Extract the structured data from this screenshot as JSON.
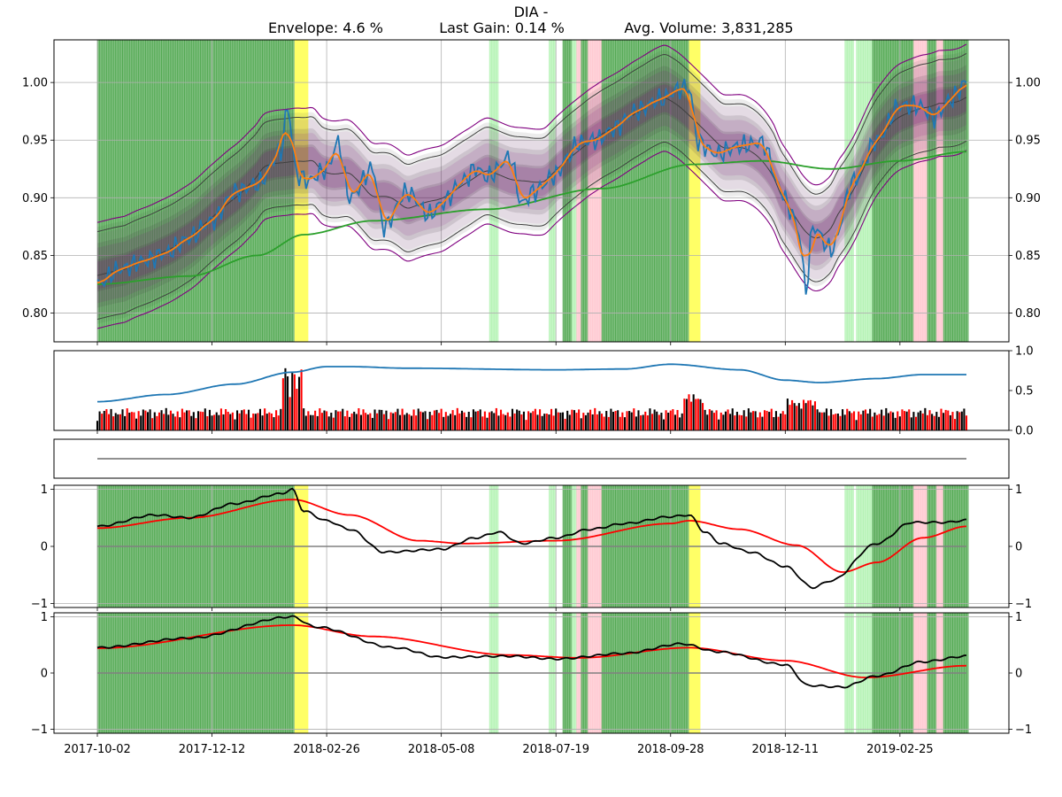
{
  "chart_data": {
    "type": "line",
    "title": "DIA -",
    "subtitle": {
      "envelope": "Envelope: 4.6 %",
      "last_gain": "Last Gain: 0.14 %",
      "avg_volume": "Avg. Volume: 3,831,285"
    },
    "x_tick_labels": [
      "2017-10-02",
      "2017-12-12",
      "2018-02-26",
      "2018-05-08",
      "2018-07-19",
      "2018-09-28",
      "2018-12-11",
      "2019-02-25"
    ],
    "x_tick_index": [
      0,
      50,
      100,
      150,
      200,
      250,
      300,
      350
    ],
    "n_points": 380,
    "colors": {
      "price": "#1f77b4",
      "smooth": "#ff7f0e",
      "long_ma": "#2ca02c",
      "envelope": "#800080",
      "band": "#404040",
      "buy_span": "#008000",
      "light_buy": "#90ee90",
      "sell_span": "#ffb6c1",
      "caution": "#ffff00",
      "vol_up": "#000000",
      "vol_down": "#ff0000",
      "vol_line": "#1f77b4",
      "osc_fast": "#000000",
      "osc_slow": "#ff0000",
      "zero_line": "#808080"
    },
    "spans": [
      {
        "start": 0,
        "end": 86,
        "kind": "buy"
      },
      {
        "start": 86,
        "end": 92,
        "kind": "caution"
      },
      {
        "start": 171,
        "end": 175,
        "kind": "light"
      },
      {
        "start": 197,
        "end": 200,
        "kind": "light"
      },
      {
        "start": 203,
        "end": 207,
        "kind": "buy"
      },
      {
        "start": 207,
        "end": 209,
        "kind": "light"
      },
      {
        "start": 209,
        "end": 211,
        "kind": "sell"
      },
      {
        "start": 211,
        "end": 214,
        "kind": "buy"
      },
      {
        "start": 214,
        "end": 220,
        "kind": "sell"
      },
      {
        "start": 220,
        "end": 258,
        "kind": "buy"
      },
      {
        "start": 258,
        "end": 263,
        "kind": "caution"
      },
      {
        "start": 326,
        "end": 328,
        "kind": "light"
      },
      {
        "start": 328,
        "end": 330,
        "kind": "light"
      },
      {
        "start": 331,
        "end": 338,
        "kind": "light"
      },
      {
        "start": 338,
        "end": 356,
        "kind": "buy"
      },
      {
        "start": 356,
        "end": 362,
        "kind": "sell"
      },
      {
        "start": 362,
        "end": 366,
        "kind": "buy"
      },
      {
        "start": 366,
        "end": 369,
        "kind": "sell"
      },
      {
        "start": 369,
        "end": 380,
        "kind": "buy"
      }
    ],
    "price_panel": {
      "ylim": [
        0.775,
        1.037
      ],
      "y_ticks": [
        "0.80",
        "0.85",
        "0.90",
        "0.95",
        "1.00"
      ],
      "y_tick_values": [
        0.8,
        0.85,
        0.9,
        0.95,
        1.0
      ],
      "price_anchors": [
        [
          0,
          0.825
        ],
        [
          10,
          0.838
        ],
        [
          20,
          0.845
        ],
        [
          30,
          0.852
        ],
        [
          40,
          0.865
        ],
        [
          50,
          0.88
        ],
        [
          60,
          0.905
        ],
        [
          70,
          0.912
        ],
        [
          80,
          0.94
        ],
        [
          83,
          0.978
        ],
        [
          87,
          0.92
        ],
        [
          92,
          0.915
        ],
        [
          100,
          0.925
        ],
        [
          105,
          0.948
        ],
        [
          110,
          0.9
        ],
        [
          120,
          0.925
        ],
        [
          125,
          0.875
        ],
        [
          135,
          0.905
        ],
        [
          145,
          0.885
        ],
        [
          150,
          0.895
        ],
        [
          160,
          0.915
        ],
        [
          165,
          0.926
        ],
        [
          170,
          0.918
        ],
        [
          180,
          0.935
        ],
        [
          185,
          0.895
        ],
        [
          190,
          0.905
        ],
        [
          200,
          0.92
        ],
        [
          205,
          0.935
        ],
        [
          210,
          0.948
        ],
        [
          218,
          0.95
        ],
        [
          225,
          0.96
        ],
        [
          235,
          0.975
        ],
        [
          245,
          0.985
        ],
        [
          255,
          0.995
        ],
        [
          258,
          0.995
        ],
        [
          262,
          0.948
        ],
        [
          270,
          0.938
        ],
        [
          280,
          0.945
        ],
        [
          290,
          0.948
        ],
        [
          298,
          0.908
        ],
        [
          302,
          0.89
        ],
        [
          306,
          0.87
        ],
        [
          309,
          0.82
        ],
        [
          312,
          0.875
        ],
        [
          320,
          0.855
        ],
        [
          330,
          0.915
        ],
        [
          340,
          0.95
        ],
        [
          350,
          0.98
        ],
        [
          358,
          0.98
        ],
        [
          365,
          0.97
        ],
        [
          372,
          0.985
        ],
        [
          379,
          1.0
        ]
      ],
      "long_ma_anchors": [
        [
          0,
          0.825
        ],
        [
          40,
          0.832
        ],
        [
          70,
          0.85
        ],
        [
          90,
          0.868
        ],
        [
          120,
          0.88
        ],
        [
          170,
          0.89
        ],
        [
          220,
          0.908
        ],
        [
          260,
          0.929
        ],
        [
          290,
          0.932
        ],
        [
          320,
          0.925
        ],
        [
          350,
          0.932
        ],
        [
          379,
          0.94
        ]
      ]
    },
    "volume_panel": {
      "ylim": [
        0,
        1
      ],
      "y_ticks": [
        "0.0",
        "0.5",
        "1.0"
      ],
      "y_tick_values": [
        0.0,
        0.5,
        1.0
      ],
      "volume_line_anchors": [
        [
          0,
          0.36
        ],
        [
          30,
          0.45
        ],
        [
          60,
          0.58
        ],
        [
          85,
          0.73
        ],
        [
          100,
          0.8
        ],
        [
          110,
          0.8
        ],
        [
          135,
          0.78
        ],
        [
          200,
          0.76
        ],
        [
          230,
          0.77
        ],
        [
          250,
          0.83
        ],
        [
          280,
          0.76
        ],
        [
          300,
          0.63
        ],
        [
          315,
          0.6
        ],
        [
          340,
          0.65
        ],
        [
          360,
          0.7
        ],
        [
          379,
          0.7
        ]
      ]
    },
    "flat_panel": {
      "ylim": [
        0,
        1
      ],
      "level": 0.5
    },
    "oscillator_1": {
      "ylim": [
        -1.07,
        1.07
      ],
      "y_ticks": [
        "−1",
        "0",
        "1"
      ],
      "y_tick_values": [
        -1,
        0,
        1
      ],
      "fast_anchors": [
        [
          0,
          0.35
        ],
        [
          25,
          0.55
        ],
        [
          40,
          0.5
        ],
        [
          60,
          0.75
        ],
        [
          80,
          0.92
        ],
        [
          85,
          1.0
        ],
        [
          90,
          0.62
        ],
        [
          100,
          0.45
        ],
        [
          110,
          0.3
        ],
        [
          125,
          -0.1
        ],
        [
          150,
          -0.05
        ],
        [
          165,
          0.15
        ],
        [
          175,
          0.25
        ],
        [
          185,
          0.05
        ],
        [
          200,
          0.15
        ],
        [
          215,
          0.3
        ],
        [
          230,
          0.4
        ],
        [
          250,
          0.52
        ],
        [
          258,
          0.55
        ],
        [
          265,
          0.25
        ],
        [
          272,
          0.05
        ],
        [
          285,
          -0.1
        ],
        [
          300,
          -0.35
        ],
        [
          312,
          -0.72
        ],
        [
          320,
          -0.6
        ],
        [
          340,
          0.05
        ],
        [
          355,
          0.42
        ],
        [
          370,
          0.42
        ],
        [
          379,
          0.46
        ]
      ],
      "slow_anchors": [
        [
          0,
          0.32
        ],
        [
          40,
          0.5
        ],
        [
          85,
          0.82
        ],
        [
          110,
          0.55
        ],
        [
          140,
          0.1
        ],
        [
          160,
          0.05
        ],
        [
          200,
          0.1
        ],
        [
          250,
          0.4
        ],
        [
          258,
          0.45
        ],
        [
          280,
          0.3
        ],
        [
          305,
          0.02
        ],
        [
          325,
          -0.45
        ],
        [
          340,
          -0.28
        ],
        [
          360,
          0.15
        ],
        [
          379,
          0.35
        ]
      ]
    },
    "oscillator_2": {
      "ylim": [
        -1.07,
        1.07
      ],
      "y_ticks": [
        "−1",
        "0",
        "1"
      ],
      "y_tick_values": [
        -1,
        0,
        1
      ],
      "fast_anchors": [
        [
          0,
          0.45
        ],
        [
          40,
          0.62
        ],
        [
          85,
          1.0
        ],
        [
          95,
          0.82
        ],
        [
          130,
          0.45
        ],
        [
          150,
          0.28
        ],
        [
          180,
          0.3
        ],
        [
          200,
          0.25
        ],
        [
          230,
          0.35
        ],
        [
          255,
          0.52
        ],
        [
          270,
          0.38
        ],
        [
          300,
          0.15
        ],
        [
          310,
          -0.22
        ],
        [
          325,
          -0.25
        ],
        [
          340,
          -0.05
        ],
        [
          360,
          0.2
        ],
        [
          379,
          0.3
        ]
      ],
      "slow_anchors": [
        [
          0,
          0.44
        ],
        [
          85,
          0.85
        ],
        [
          120,
          0.65
        ],
        [
          180,
          0.32
        ],
        [
          210,
          0.27
        ],
        [
          258,
          0.45
        ],
        [
          300,
          0.22
        ],
        [
          335,
          -0.08
        ],
        [
          379,
          0.13
        ]
      ]
    }
  }
}
